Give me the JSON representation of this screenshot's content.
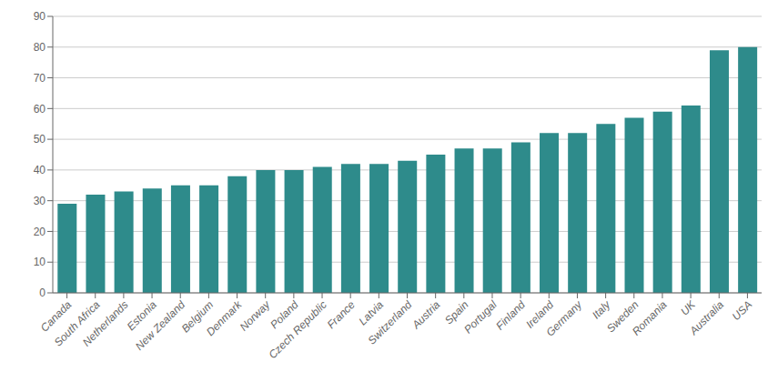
{
  "chart_data": {
    "type": "bar",
    "categories": [
      "Canada",
      "South Africa",
      "Netherlands",
      "Estonia",
      "New Zealand",
      "Belgium",
      "Denmark",
      "Norway",
      "Poland",
      "Czech Republic",
      "France",
      "Latvia",
      "Switzerland",
      "Austria",
      "Spain",
      "Portugal",
      "Finland",
      "Ireland",
      "Germany",
      "Italy",
      "Sweden",
      "Romania",
      "UK",
      "Australia",
      "USA"
    ],
    "values": [
      29,
      32,
      33,
      34,
      35,
      35,
      38,
      40,
      40,
      41,
      42,
      42,
      43,
      45,
      47,
      47,
      49,
      52,
      52,
      55,
      57,
      59,
      61,
      79,
      80
    ],
    "color": "#2E8B8B",
    "ylim": [
      0,
      90
    ],
    "yticks": [
      0,
      10,
      20,
      30,
      40,
      50,
      60,
      70,
      80,
      90
    ],
    "grid": true
  }
}
